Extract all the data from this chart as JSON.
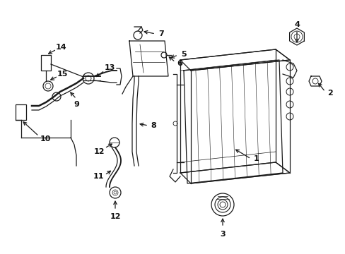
{
  "bg_color": "#ffffff",
  "line_color": "#1a1a1a",
  "text_color": "#111111",
  "font_size": 8,
  "lw": 0.9,
  "figsize": [
    4.89,
    3.6
  ],
  "dpi": 100,
  "xlim": [
    0,
    489
  ],
  "ylim": [
    0,
    360
  ]
}
